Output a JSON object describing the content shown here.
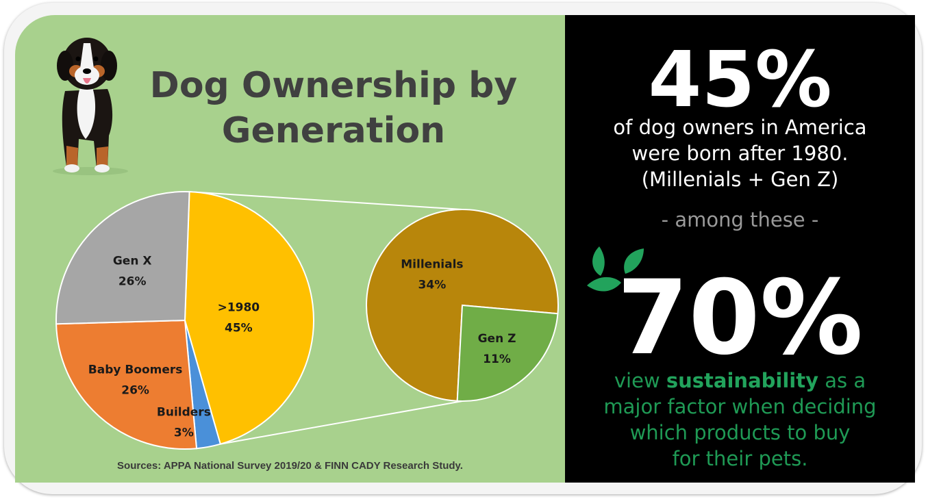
{
  "title_line1": "Dog Ownership by",
  "title_line2": "Generation",
  "sources": "Sources: APPA National Survey 2019/20 & FINN CADY Research Study.",
  "chart_data": [
    {
      "type": "pie",
      "slices": [
        {
          "label": ">1980",
          "value": 45,
          "value_label": "45%",
          "color": "#ffc000"
        },
        {
          "label": "Builders",
          "value": 3,
          "value_label": "3%",
          "color": "#4a90d9"
        },
        {
          "label": "Baby Boomers",
          "value": 26,
          "value_label": "26%",
          "color": "#ed7d31"
        },
        {
          "label": "Gen X",
          "value": 26,
          "value_label": "26%",
          "color": "#a6a6a6"
        }
      ]
    },
    {
      "type": "pie",
      "slices": [
        {
          "label": "Millenials",
          "value": 34,
          "value_label": "34%",
          "color": "#b8860b"
        },
        {
          "label": "Gen Z",
          "value": 11,
          "value_label": "11%",
          "color": "#70ad47"
        }
      ]
    }
  ],
  "stats": {
    "stat1_value": "45%",
    "stat1_line1": "of dog owners in America",
    "stat1_line2": "were born after 1980.",
    "stat1_line3": "(Millenials + Gen Z)",
    "among": "- among these -",
    "stat2_value": "70%",
    "stat2_pre": "view ",
    "stat2_bold": "sustainability",
    "stat2_post": " as a",
    "stat2_line2": "major factor when deciding",
    "stat2_line3": "which products to buy",
    "stat2_line4": "for their pets."
  },
  "colors": {
    "panel_green": "#a8d18d",
    "panel_black": "#000000",
    "accent_green": "#22a35c"
  }
}
